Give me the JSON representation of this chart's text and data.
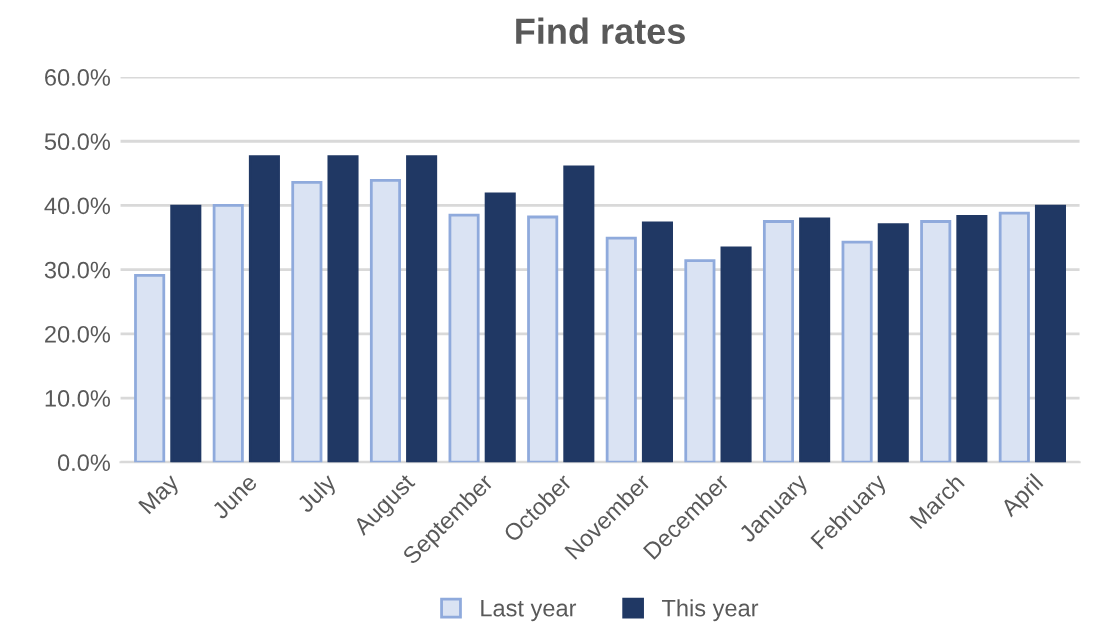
{
  "chart_data": {
    "type": "bar",
    "title": "Find rates",
    "categories": [
      "May",
      "June",
      "July",
      "August",
      "September",
      "October",
      "November",
      "December",
      "January",
      "February",
      "March",
      "April"
    ],
    "series": [
      {
        "name": "Last year",
        "color": "#dae3f3",
        "values": [
          29.1,
          40.0,
          43.6,
          43.9,
          38.5,
          38.2,
          34.9,
          31.4,
          37.5,
          34.3,
          37.5,
          38.8
        ]
      },
      {
        "name": "This year",
        "color": "#203864",
        "values": [
          39.9,
          47.6,
          47.6,
          47.6,
          41.8,
          46.0,
          37.3,
          33.4,
          37.9,
          37.0,
          38.3,
          39.9
        ]
      }
    ],
    "ylim": [
      0,
      60
    ],
    "yticks": [
      {
        "value": 0,
        "label": "0.0%"
      },
      {
        "value": 10,
        "label": "10.0%"
      },
      {
        "value": 20,
        "label": "20.0%"
      },
      {
        "value": 30,
        "label": "30.0%"
      },
      {
        "value": 40,
        "label": "40.0%"
      },
      {
        "value": 50,
        "label": "50.0%"
      },
      {
        "value": 60,
        "label": "60.0%"
      }
    ],
    "grid": "y",
    "legend": "bottom"
  }
}
